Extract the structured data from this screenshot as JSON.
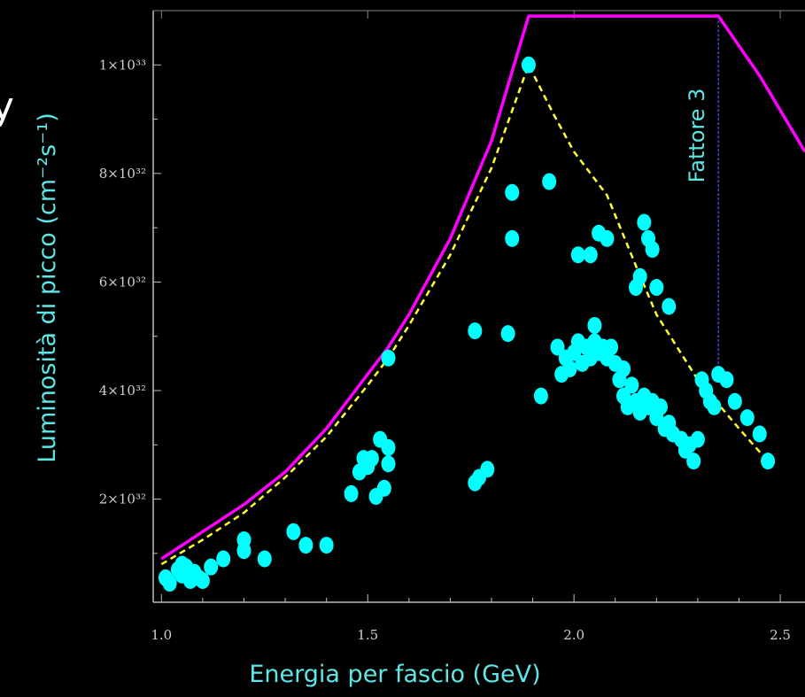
{
  "chart_data": {
    "type": "scatter",
    "xlabel": "Energia per fascio (GeV)",
    "ylabel": "Luminosità di picco (cm⁻²s⁻¹)",
    "xlim": [
      0.98,
      2.56
    ],
    "ylim": [
      1e+31,
      1.1e+33
    ],
    "x_ticks": [
      1.0,
      1.5,
      2.0,
      2.5
    ],
    "x_tick_labels": [
      "1.0",
      "1.5",
      "2.0",
      "2.5"
    ],
    "y_ticks": [
      2e+32,
      4e+32,
      6e+32,
      8e+32,
      1e+33
    ],
    "y_tick_labels": [
      "2×10³²",
      "4×10³²",
      "6×10³²",
      "8×10³²",
      "1×10³³"
    ],
    "annotation": {
      "text": "Fattore 3",
      "x": 2.35,
      "y_from": 4.3e+32,
      "y_to": 1.09e+33
    },
    "partial_glyph": "y",
    "colors": {
      "points": "#00ffff",
      "upper_curve": "#ff00ff",
      "dashed_curve": "#ffff33",
      "annotation_line": "#3c4fd0",
      "text": "#5fe6e6"
    },
    "series": [
      {
        "kind": "line",
        "color": "#ff00ff",
        "x": [
          1.0,
          1.1,
          1.2,
          1.3,
          1.4,
          1.5,
          1.55,
          1.6,
          1.7,
          1.8,
          1.89,
          2.0,
          2.1,
          2.2,
          2.35,
          2.45,
          2.56
        ],
        "y": [
          9e+31,
          1.4e+32,
          1.9e+32,
          2.5e+32,
          3.3e+32,
          4.3e+32,
          4.8e+32,
          5.4e+32,
          6.8e+32,
          8.6e+32,
          1.09e+33,
          1.09e+33,
          1.09e+33,
          1.09e+33,
          1.09e+33,
          9.8e+32,
          8.4e+32
        ]
      },
      {
        "kind": "dashed-line",
        "color": "#ffff33",
        "x": [
          1.0,
          1.1,
          1.2,
          1.3,
          1.4,
          1.5,
          1.55,
          1.6,
          1.7,
          1.8,
          1.89,
          1.95,
          2.0,
          2.08,
          2.15,
          2.2,
          2.3,
          2.4,
          2.47
        ],
        "y": [
          8e+31,
          1.25e+32,
          1.75e+32,
          2.4e+32,
          3.15e+32,
          4.1e+32,
          4.6e+32,
          5.2e+32,
          6.5e+32,
          8.1e+32,
          1e+33,
          9.1e+32,
          8.4e+32,
          7.6e+32,
          6.3e+32,
          5.4e+32,
          4.2e+32,
          3.3e+32,
          2.7e+32
        ]
      },
      {
        "kind": "scatter",
        "color": "#00ffff",
        "x": [
          1.01,
          1.02,
          1.04,
          1.05,
          1.05,
          1.06,
          1.07,
          1.08,
          1.09,
          1.1,
          1.12,
          1.15,
          1.2,
          1.2,
          1.25,
          1.32,
          1.35,
          1.4,
          1.46,
          1.48,
          1.49,
          1.5,
          1.51,
          1.52,
          1.53,
          1.54,
          1.55,
          1.55,
          1.55,
          1.76,
          1.77,
          1.76,
          1.79,
          1.84,
          1.85,
          1.85,
          1.89,
          1.92,
          1.94,
          1.96,
          1.97,
          1.98,
          1.99,
          2.0,
          2.01,
          2.02,
          2.03,
          2.04,
          2.05,
          2.06,
          2.07,
          2.08,
          2.09,
          2.1,
          2.11,
          2.12,
          2.12,
          2.13,
          2.14,
          2.15,
          2.15,
          2.16,
          2.16,
          2.17,
          2.18,
          2.19,
          2.2,
          2.21,
          2.22,
          2.23,
          2.24,
          2.26,
          2.27,
          2.28,
          2.29,
          2.3,
          2.31,
          2.32,
          2.33,
          2.34,
          2.35,
          2.37,
          2.39,
          2.42,
          2.45,
          2.47,
          2.04,
          2.06,
          2.08,
          2.01,
          2.05,
          2.17,
          2.18,
          2.19,
          2.2,
          2.23
        ],
        "y": [
          5.5e+31,
          4.5e+31,
          7e+31,
          8e+31,
          6e+31,
          7.5e+31,
          5e+31,
          6.5e+31,
          5.5e+31,
          5e+31,
          7.5e+31,
          9e+31,
          1.25e+32,
          1.05e+32,
          9e+31,
          1.4e+32,
          1.15e+32,
          1.15e+32,
          2.1e+32,
          2.5e+32,
          2.75e+32,
          2.6e+32,
          2.75e+32,
          2.05e+32,
          3.1e+32,
          2.2e+32,
          2.95e+32,
          2.65e+32,
          4.6e+32,
          2.3e+32,
          2.4e+32,
          5.1e+32,
          2.55e+32,
          5.05e+32,
          6.8e+32,
          7.65e+32,
          1e+33,
          3.9e+32,
          7.85e+32,
          4.8e+32,
          4.3e+32,
          4.6e+32,
          4.4e+32,
          4.7e+32,
          4.9e+32,
          4.5e+32,
          4.8e+32,
          4.6e+32,
          4.9e+32,
          4.7e+32,
          4.8e+32,
          4.6e+32,
          4.8e+32,
          4.5e+32,
          4.2e+32,
          3.9e+32,
          4.4e+32,
          3.7e+32,
          4.1e+32,
          3.8e+32,
          5.9e+32,
          3.6e+32,
          6.1e+32,
          3.9e+32,
          3.7e+32,
          3.8e+32,
          3.5e+32,
          3.7e+32,
          3.3e+32,
          3.4e+32,
          3.2e+32,
          3.1e+32,
          2.9e+32,
          3e+32,
          2.7e+32,
          3.1e+32,
          4.2e+32,
          4e+32,
          3.8e+32,
          3.7e+32,
          4.3e+32,
          4.2e+32,
          3.8e+32,
          3.5e+32,
          3.2e+32,
          2.7e+32,
          6.5e+32,
          6.9e+32,
          6.8e+32,
          6.5e+32,
          5.2e+32,
          7.1e+32,
          6.8e+32,
          6.6e+32,
          5.9e+32,
          5.55e+32
        ]
      }
    ]
  }
}
